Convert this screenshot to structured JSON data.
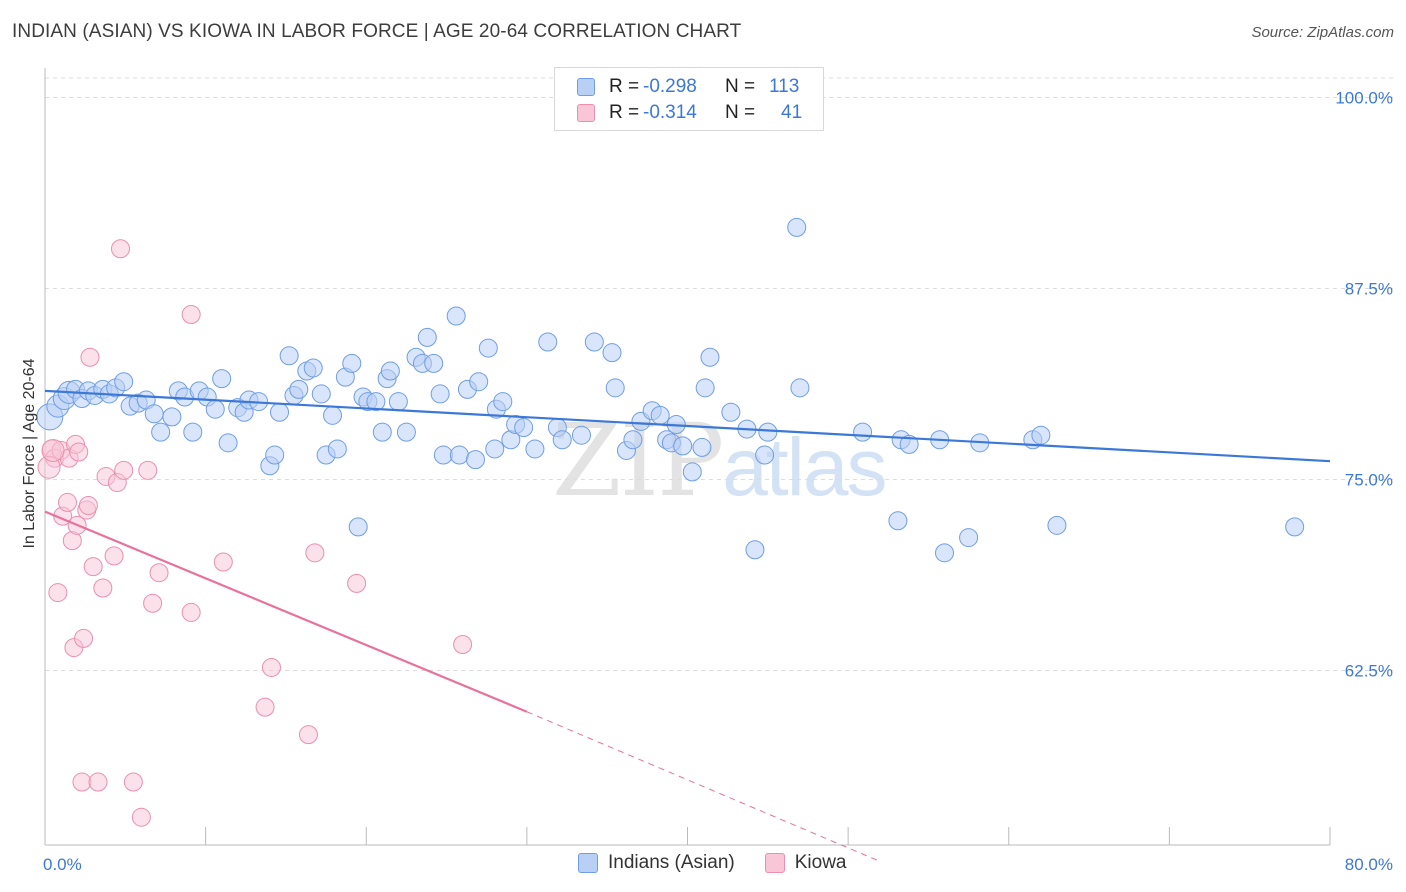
{
  "title": "INDIAN (ASIAN) VS KIOWA IN LABOR FORCE | AGE 20-64 CORRELATION CHART",
  "source": "Source: ZipAtlas.com",
  "watermark": {
    "zip": "ZIP",
    "atlas": "atlas"
  },
  "legend": {
    "r_label": "R =",
    "n_label": "N =",
    "rows": [
      {
        "r": "-0.298",
        "n": "113"
      },
      {
        "r": "-0.314",
        "n": "41"
      }
    ]
  },
  "bottom_legend": [
    "Indians (Asian)",
    "Kiowa"
  ],
  "colors": {
    "blue": "#3c78d8",
    "pink": "#e8729a",
    "blue_fill": "#b9d0f5",
    "pink_fill": "#f8c6d6"
  },
  "chart_data": {
    "type": "scatter",
    "title": "INDIAN (ASIAN) VS KIOWA IN LABOR FORCE | AGE 20-64 CORRELATION CHART",
    "xlabel": "",
    "ylabel": "In Labor Force | Age 20-64",
    "xlim": [
      0,
      80
    ],
    "ylim": [
      50,
      100.5
    ],
    "x_tick_labels": [
      "0.0%",
      "80.0%"
    ],
    "y_ticks": [
      62.5,
      75.0,
      87.5,
      100.0
    ],
    "y_tick_labels": [
      "62.5%",
      "75.0%",
      "87.5%",
      "100.0%"
    ],
    "grid": true,
    "series": [
      {
        "name": "Indians (Asian)",
        "color": "#3c78d8",
        "trend": {
          "x": [
            0,
            80
          ],
          "y": [
            80.8,
            76.2
          ],
          "dashed_after": null
        },
        "points": [
          [
            0.3,
            79.1
          ],
          [
            0.8,
            79.8
          ],
          [
            1.2,
            80.3
          ],
          [
            1.5,
            80.7
          ],
          [
            1.9,
            80.9
          ],
          [
            2.3,
            80.3
          ],
          [
            2.7,
            80.8
          ],
          [
            3.1,
            80.5
          ],
          [
            3.6,
            80.9
          ],
          [
            4.0,
            80.6
          ],
          [
            4.4,
            81.0
          ],
          [
            4.9,
            81.4
          ],
          [
            5.3,
            79.8
          ],
          [
            5.8,
            80.0
          ],
          [
            6.3,
            80.2
          ],
          [
            6.8,
            79.3
          ],
          [
            7.2,
            78.1
          ],
          [
            7.9,
            79.1
          ],
          [
            8.3,
            80.8
          ],
          [
            8.7,
            80.4
          ],
          [
            9.2,
            78.1
          ],
          [
            9.6,
            80.8
          ],
          [
            10.1,
            80.4
          ],
          [
            10.6,
            79.6
          ],
          [
            11.0,
            81.6
          ],
          [
            11.4,
            77.4
          ],
          [
            12.0,
            79.7
          ],
          [
            12.4,
            79.4
          ],
          [
            12.7,
            80.2
          ],
          [
            13.3,
            80.1
          ],
          [
            14.0,
            75.9
          ],
          [
            14.3,
            76.6
          ],
          [
            14.6,
            79.4
          ],
          [
            15.2,
            83.1
          ],
          [
            15.5,
            80.5
          ],
          [
            15.8,
            80.9
          ],
          [
            16.3,
            82.1
          ],
          [
            16.7,
            82.3
          ],
          [
            17.2,
            80.6
          ],
          [
            17.5,
            76.6
          ],
          [
            17.9,
            79.2
          ],
          [
            18.2,
            77.0
          ],
          [
            18.7,
            81.7
          ],
          [
            19.1,
            82.6
          ],
          [
            19.5,
            71.9
          ],
          [
            19.8,
            80.4
          ],
          [
            20.1,
            80.1
          ],
          [
            20.6,
            80.1
          ],
          [
            21.0,
            78.1
          ],
          [
            21.3,
            81.6
          ],
          [
            21.5,
            82.1
          ],
          [
            22.0,
            80.1
          ],
          [
            22.5,
            78.1
          ],
          [
            23.1,
            83.0
          ],
          [
            23.5,
            82.6
          ],
          [
            23.8,
            84.3
          ],
          [
            24.2,
            82.6
          ],
          [
            24.6,
            80.6
          ],
          [
            24.8,
            76.6
          ],
          [
            25.6,
            85.7
          ],
          [
            25.8,
            76.6
          ],
          [
            26.3,
            80.9
          ],
          [
            26.8,
            76.3
          ],
          [
            27.0,
            81.4
          ],
          [
            27.6,
            83.6
          ],
          [
            28.1,
            79.6
          ],
          [
            28.0,
            77.0
          ],
          [
            28.5,
            80.1
          ],
          [
            29.0,
            77.6
          ],
          [
            29.3,
            78.6
          ],
          [
            29.8,
            78.4
          ],
          [
            30.5,
            77.0
          ],
          [
            31.3,
            84.0
          ],
          [
            31.9,
            78.4
          ],
          [
            32.2,
            77.6
          ],
          [
            33.4,
            77.9
          ],
          [
            34.2,
            84.0
          ],
          [
            35.3,
            83.3
          ],
          [
            35.5,
            81.0
          ],
          [
            36.2,
            76.9
          ],
          [
            36.6,
            77.6
          ],
          [
            37.1,
            78.8
          ],
          [
            37.8,
            79.5
          ],
          [
            38.3,
            79.2
          ],
          [
            38.7,
            77.6
          ],
          [
            39.0,
            77.4
          ],
          [
            39.3,
            78.6
          ],
          [
            39.7,
            77.2
          ],
          [
            40.3,
            75.5
          ],
          [
            40.9,
            77.1
          ],
          [
            41.1,
            81.0
          ],
          [
            41.4,
            83.0
          ],
          [
            42.7,
            79.4
          ],
          [
            43.7,
            78.3
          ],
          [
            44.2,
            70.4
          ],
          [
            44.8,
            76.6
          ],
          [
            45.0,
            78.1
          ],
          [
            46.8,
            91.5
          ],
          [
            47.0,
            81.0
          ],
          [
            50.9,
            78.1
          ],
          [
            53.1,
            72.3
          ],
          [
            53.3,
            77.6
          ],
          [
            53.8,
            77.3
          ],
          [
            55.7,
            77.6
          ],
          [
            56.0,
            70.2
          ],
          [
            57.5,
            71.2
          ],
          [
            58.2,
            77.4
          ],
          [
            61.5,
            77.6
          ],
          [
            62.0,
            77.9
          ],
          [
            63.0,
            72.0
          ],
          [
            77.8,
            71.9
          ]
        ]
      },
      {
        "name": "Kiowa",
        "color": "#e8729a",
        "trend": {
          "x": [
            0,
            30.0,
            52.0
          ],
          "y": [
            72.9,
            59.8,
            50.0
          ],
          "dashed_after": 30.0
        },
        "points": [
          [
            0.4,
            77.0
          ],
          [
            0.6,
            76.4
          ],
          [
            0.8,
            67.6
          ],
          [
            1.0,
            76.9
          ],
          [
            1.1,
            72.6
          ],
          [
            1.4,
            73.5
          ],
          [
            1.5,
            76.4
          ],
          [
            1.7,
            71.0
          ],
          [
            1.8,
            64.0
          ],
          [
            1.9,
            77.3
          ],
          [
            2.0,
            72.0
          ],
          [
            2.1,
            76.8
          ],
          [
            2.3,
            55.2
          ],
          [
            2.4,
            64.6
          ],
          [
            2.6,
            73.0
          ],
          [
            2.7,
            73.3
          ],
          [
            2.8,
            83.0
          ],
          [
            3.0,
            69.3
          ],
          [
            3.3,
            55.2
          ],
          [
            3.6,
            67.9
          ],
          [
            3.8,
            75.2
          ],
          [
            4.3,
            70.0
          ],
          [
            4.5,
            74.8
          ],
          [
            4.7,
            90.1
          ],
          [
            4.9,
            75.6
          ],
          [
            5.5,
            55.2
          ],
          [
            6.0,
            52.9
          ],
          [
            6.4,
            75.6
          ],
          [
            6.7,
            66.9
          ],
          [
            7.1,
            68.9
          ],
          [
            9.1,
            85.8
          ],
          [
            9.1,
            66.3
          ],
          [
            11.1,
            69.6
          ],
          [
            13.7,
            60.1
          ],
          [
            14.1,
            62.7
          ],
          [
            16.4,
            58.3
          ],
          [
            16.8,
            70.2
          ],
          [
            19.4,
            68.2
          ],
          [
            26.0,
            64.2
          ],
          [
            0.25,
            75.8
          ],
          [
            0.5,
            76.9
          ]
        ]
      }
    ]
  }
}
